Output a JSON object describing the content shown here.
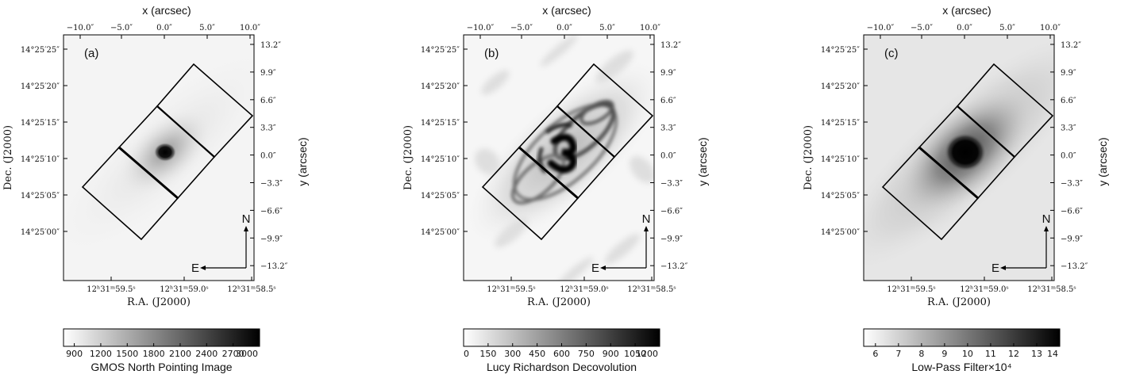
{
  "figure": {
    "panels": [
      {
        "letter": "(a)",
        "x_axis_label": "x (arcsec)",
        "y_axis_label": "y (arcsec)",
        "ra_label": "R.A. (J2000)",
        "dec_label": "Dec. (J2000)",
        "top_ticks": [
          "−10.0″",
          "−5.0″",
          "0.0″",
          "5.0″",
          "10.0″"
        ],
        "right_ticks": [
          "13.2″",
          "9.9″",
          "6.6″",
          "3.3″",
          "0.0″",
          "−3.3″",
          "−6.6″",
          "−9.9″",
          "−13.2″"
        ],
        "left_ticks": [
          "14°25′25″",
          "14°25′20″",
          "14°25′15″",
          "14°25′10″",
          "14°25′05″",
          "14°25′00″"
        ],
        "bottom_ticks": [
          "12ʰ31ᵐ59.5ˢ",
          "12ʰ31ᵐ59.0ˢ",
          "12ʰ31ᵐ58.5ˢ"
        ],
        "compass_n": "N",
        "compass_e": "E",
        "colorbar_ticks": [
          "900",
          "1200",
          "1500",
          "1800",
          "2100",
          "2400",
          "2700",
          "3000"
        ],
        "colorbar_label": "GMOS North Pointing Image",
        "image_style": "gmos"
      },
      {
        "letter": "(b)",
        "x_axis_label": "x (arcsec)",
        "y_axis_label": "y (arcsec)",
        "ra_label": "R.A. (J2000)",
        "dec_label": "Dec. (J2000)",
        "top_ticks": [
          "−10.0″",
          "−5.0″",
          "0.0″",
          "5.0″",
          "10.0″"
        ],
        "right_ticks": [
          "13.2″",
          "9.9″",
          "6.6″",
          "3.3″",
          "0.0″",
          "−3.3″",
          "−6.6″",
          "−9.9″",
          "−13.2″"
        ],
        "left_ticks": [
          "14°25′25″",
          "14°25′20″",
          "14°25′15″",
          "14°25′10″",
          "14°25′05″",
          "14°25′00″"
        ],
        "bottom_ticks": [
          "12ʰ31ᵐ59.5ˢ",
          "12ʰ31ᵐ59.0ˢ",
          "12ʰ31ᵐ58.5ˢ"
        ],
        "compass_n": "N",
        "compass_e": "E",
        "colorbar_ticks": [
          "0",
          "150",
          "300",
          "450",
          "600",
          "750",
          "900",
          "1050",
          "1200"
        ],
        "colorbar_label": "Lucy Richardson Decovolution",
        "image_style": "lucy"
      },
      {
        "letter": "(c)",
        "x_axis_label": "x (arcsec)",
        "y_axis_label": "y (arcsec)",
        "ra_label": "R.A. (J2000)",
        "dec_label": "Dec. (J2000)",
        "top_ticks": [
          "−10.0″",
          "−5.0″",
          "0.0″",
          "5.0″",
          "10.0″"
        ],
        "right_ticks": [
          "13.2″",
          "9.9″",
          "6.6″",
          "3.3″",
          "0.0″",
          "−3.3″",
          "−6.6″",
          "−9.9″",
          "−13.2″"
        ],
        "left_ticks": [
          "14°25′25″",
          "14°25′20″",
          "14°25′15″",
          "14°25′10″",
          "14°25′05″",
          "14°25′00″"
        ],
        "bottom_ticks": [
          "12ʰ31ᵐ59.5ˢ",
          "12ʰ31ᵐ59.0ˢ",
          "12ʰ31ᵐ58.5ˢ"
        ],
        "compass_n": "N",
        "compass_e": "E",
        "colorbar_ticks": [
          "6",
          "7",
          "8",
          "9",
          "10",
          "11",
          "12",
          "13",
          "14"
        ],
        "colorbar_label": "Low-Pass Filter×10⁴",
        "image_style": "lowpass"
      }
    ]
  }
}
